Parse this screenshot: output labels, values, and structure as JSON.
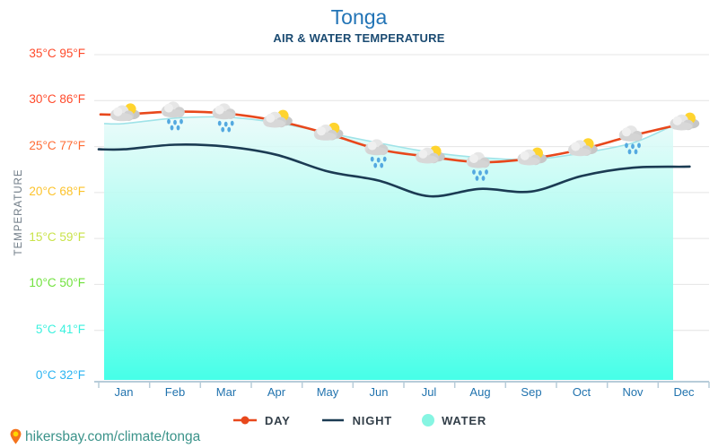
{
  "page": {
    "title": "Tonga",
    "subtitle": "AIR & WATER TEMPERATURE",
    "footer_url": "hikersbay.com/climate/tonga"
  },
  "chart_data": {
    "type": "line",
    "title": "Tonga",
    "subtitle": "AIR & WATER TEMPERATURE",
    "ylabel": "TEMPERATURE",
    "xlabel": "",
    "grid": true,
    "legend_position": "bottom",
    "ylim": [
      0,
      35
    ],
    "x_categories": [
      "Jan",
      "Feb",
      "Mar",
      "Apr",
      "May",
      "Jun",
      "Jul",
      "Aug",
      "Sep",
      "Oct",
      "Nov",
      "Dec"
    ],
    "y_ticks": [
      {
        "value": 35,
        "label_c": "35°C",
        "label_f": "95°F",
        "color": "#ff4a2b"
      },
      {
        "value": 30,
        "label_c": "30°C",
        "label_f": "86°F",
        "color": "#ff4a2b"
      },
      {
        "value": 25,
        "label_c": "25°C",
        "label_f": "77°F",
        "color": "#ff6c35"
      },
      {
        "value": 20,
        "label_c": "20°C",
        "label_f": "68°F",
        "color": "#fcc32c"
      },
      {
        "value": 15,
        "label_c": "15°C",
        "label_f": "59°F",
        "color": "#c9e34a"
      },
      {
        "value": 10,
        "label_c": "10°C",
        "label_f": "50°F",
        "color": "#70e23d"
      },
      {
        "value": 5,
        "label_c": "5°C",
        "label_f": "41°F",
        "color": "#3bf1de"
      },
      {
        "value": 0,
        "label_c": "0°C",
        "label_f": "32°F",
        "color": "#2cb4f1"
      }
    ],
    "series": [
      {
        "name": "DAY",
        "type": "line",
        "unit": "°C",
        "values": [
          28.5,
          28.8,
          28.6,
          27.8,
          26.4,
          24.7,
          23.9,
          23.3,
          23.7,
          24.7,
          26.2,
          27.5
        ]
      },
      {
        "name": "NIGHT",
        "type": "line",
        "unit": "°C",
        "values": [
          24.7,
          25.2,
          25.0,
          24.1,
          22.3,
          21.3,
          19.6,
          20.4,
          20.1,
          21.8,
          22.7,
          22.8
        ]
      },
      {
        "name": "WATER",
        "type": "area",
        "unit": "°C",
        "values": [
          27.5,
          28.1,
          28.2,
          27.6,
          26.5,
          25.4,
          24.4,
          23.8,
          23.6,
          24.3,
          25.4,
          27.3
        ]
      }
    ],
    "weather_icons": [
      "partly-cloudy",
      "rain",
      "rain",
      "partly-cloudy",
      "partly-cloudy",
      "rain",
      "partly-cloudy",
      "rain",
      "partly-cloudy",
      "partly-cloudy",
      "rain",
      "partly-cloudy"
    ]
  },
  "colors": {
    "title": "#2274b6",
    "subtitle": "#1b4b72",
    "month": "#2173ae",
    "templabel": "#6e7a85",
    "day": "#e8481c",
    "night": "#1b3b53",
    "waterline": "#9fe3e8",
    "watertop": "#e7faf9",
    "watermid": "#a5fdf0",
    "waterbottom": "#46ffe8",
    "grid": "#e4e4e4",
    "axis": "#b7ccd9",
    "url": "#3b938a",
    "legendtext": "#333f49",
    "waterlegend": "#86f5e2",
    "sun": "#ffd42e",
    "cloud": "#d8d8d8",
    "raindrop": "#54a9e0",
    "pin": "#f4731c",
    "pincenter": "#ffd600"
  }
}
